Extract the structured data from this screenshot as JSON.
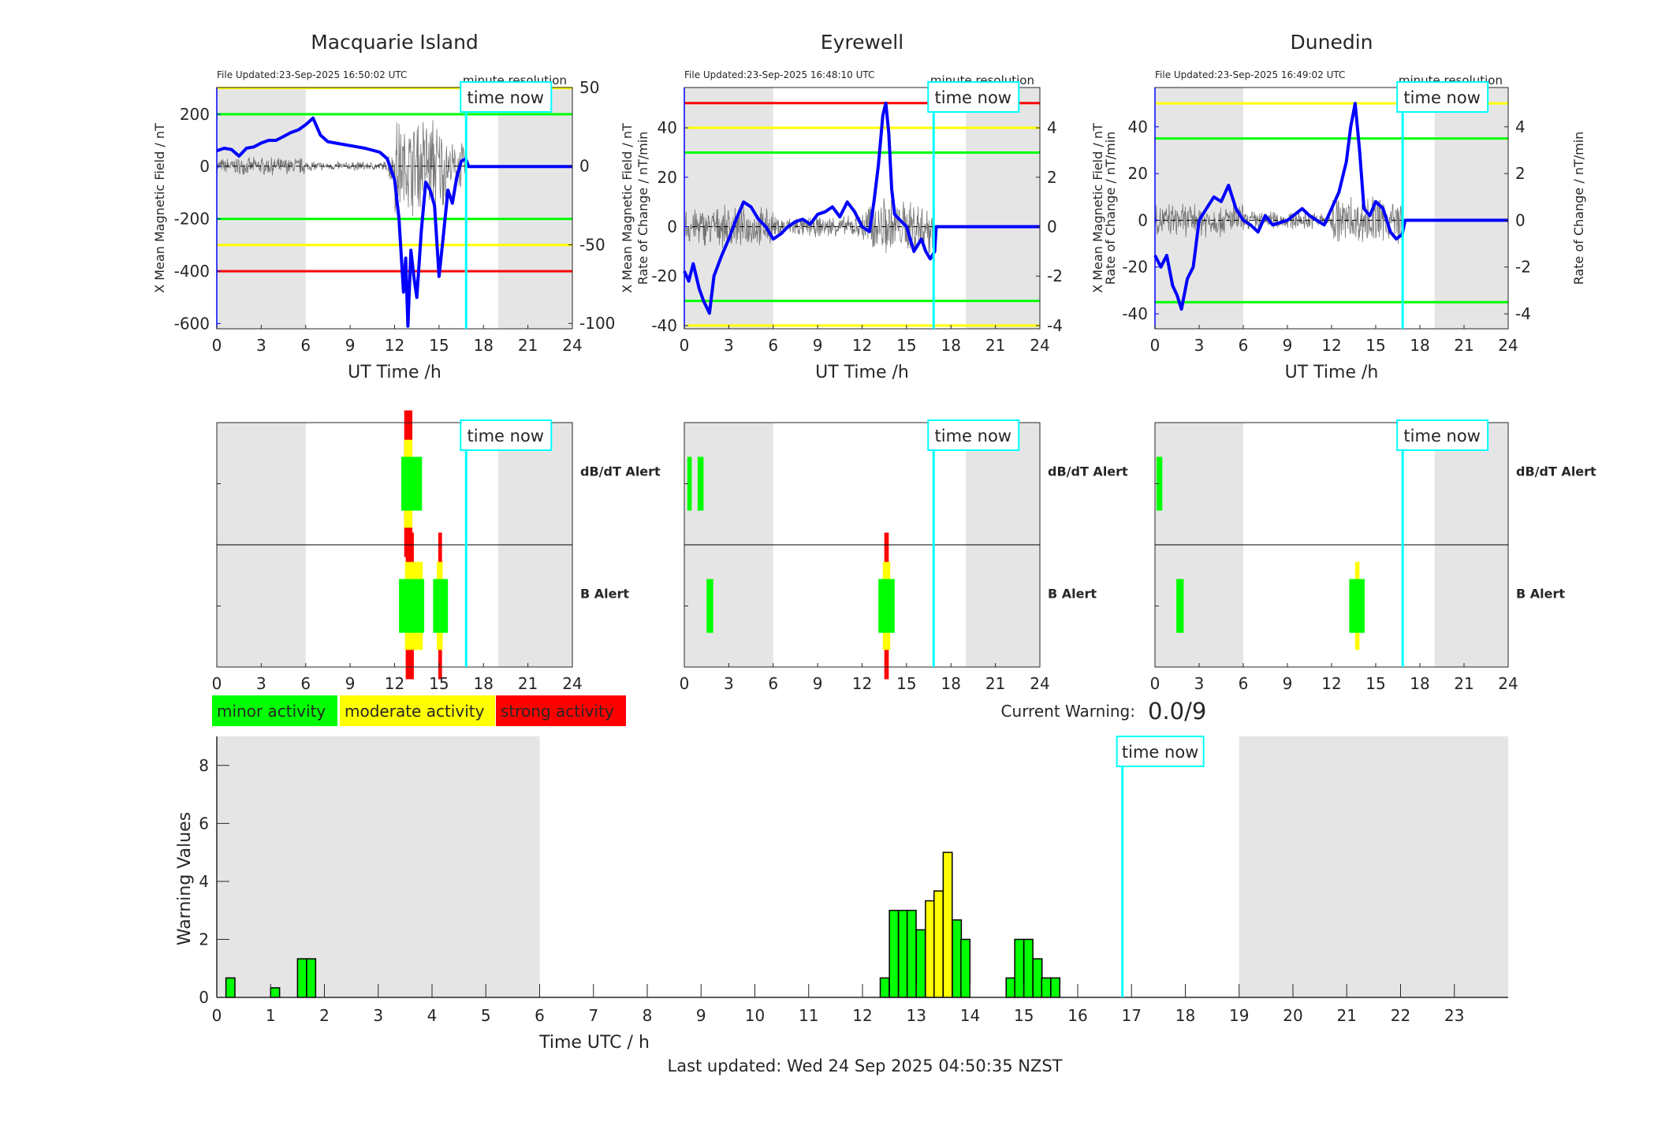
{
  "colors": {
    "green": "#00ff00",
    "yellow": "#ffff00",
    "red": "#ff0000",
    "shade": "#e5e5e5",
    "field": "#0000ff",
    "time_now": "#00ffff",
    "rate": "#555555"
  },
  "time_now_h": 16.83,
  "night_shading_h": [
    [
      0,
      6
    ],
    [
      19,
      24
    ]
  ],
  "labels": {
    "time_now": "time now",
    "minute_resolution": "minute resolution",
    "ut_time": "UT Time /h",
    "left_axis": "X Mean Magnetic Field / nT",
    "right_axis": "Rate of Change / nT/min",
    "dbdt_alert": "dB/dT Alert",
    "b_alert": "B Alert"
  },
  "legend": [
    {
      "label": "minor activity",
      "color": "#00ff00"
    },
    {
      "label": "moderate activity",
      "color": "#ffff00"
    },
    {
      "label": "strong activity",
      "color": "#ff0000"
    }
  ],
  "current_warning": {
    "label": "Current Warning:",
    "value": "0.0/9"
  },
  "chart_data": [
    {
      "type": "line",
      "title": "Macquarie Island",
      "file_updated": "File Updated:23-Sep-2025 16:50:02 UTC",
      "xlabel": "UT Time /h",
      "ylabel": "X Mean Magnetic Field / nT",
      "y2label": "Rate of Change / nT/min",
      "xlim": [
        0,
        24
      ],
      "xticks": [
        0,
        3,
        6,
        9,
        12,
        15,
        18,
        21,
        24
      ],
      "ylim": [
        -620,
        302
      ],
      "yticks": [
        -600,
        -400,
        -200,
        0,
        200
      ],
      "y2lim": [
        -103.4,
        50
      ],
      "y2ticks": [
        -100,
        -50,
        0,
        50
      ],
      "thresholds": [
        {
          "value": 300,
          "color": "#ffff00"
        },
        {
          "value": 200,
          "color": "#00ff00"
        },
        {
          "value": -200,
          "color": "#00ff00"
        },
        {
          "value": -300,
          "color": "#ffff00"
        },
        {
          "value": -400,
          "color": "#ff0000"
        }
      ],
      "field_series": {
        "x": [
          0,
          0.5,
          1,
          1.5,
          2,
          2.5,
          3,
          3.5,
          4,
          4.5,
          5,
          5.5,
          6,
          6.5,
          7,
          7.5,
          8,
          9,
          10,
          11,
          11.5,
          12,
          12.3,
          12.6,
          12.75,
          12.9,
          13.1,
          13.3,
          13.5,
          13.8,
          14.1,
          14.4,
          14.7,
          15,
          15.3,
          15.6,
          15.9,
          16.2,
          16.5,
          16.8,
          17,
          24
        ],
        "y": [
          60,
          70,
          65,
          40,
          70,
          75,
          90,
          100,
          100,
          115,
          130,
          140,
          160,
          185,
          120,
          95,
          90,
          80,
          70,
          55,
          30,
          -50,
          -200,
          -480,
          -350,
          -610,
          -320,
          -420,
          -500,
          -250,
          -60,
          -90,
          -150,
          -420,
          -260,
          -90,
          -140,
          -40,
          20,
          30,
          0,
          0
        ]
      },
      "rate_noise_amplitude": 6,
      "alerts": {
        "dbdt": [
          {
            "t0": 12.45,
            "t1": 13.85,
            "severity": "minor"
          },
          {
            "t0": 12.65,
            "t1": 13.2,
            "severity": "moderate"
          },
          {
            "t0": 12.65,
            "t1": 13.2,
            "severity": "strong"
          }
        ],
        "b": [
          {
            "t0": 12.3,
            "t1": 14.0,
            "severity": "minor"
          },
          {
            "t0": 12.7,
            "t1": 13.9,
            "severity": "moderate"
          },
          {
            "t0": 12.75,
            "t1": 13.3,
            "severity": "strong"
          },
          {
            "t0": 14.6,
            "t1": 15.6,
            "severity": "minor"
          },
          {
            "t0": 14.85,
            "t1": 15.25,
            "severity": "moderate"
          },
          {
            "t0": 14.95,
            "t1": 15.2,
            "severity": "strong"
          }
        ]
      }
    },
    {
      "type": "line",
      "title": "Eyrewell",
      "file_updated": "File Updated:23-Sep-2025 16:48:10 UTC",
      "xlabel": "UT Time /h",
      "ylabel": "X Mean Magnetic Field / nT",
      "y2label": "Rate of Change / nT/min",
      "xlim": [
        0,
        24
      ],
      "xticks": [
        0,
        3,
        6,
        9,
        12,
        15,
        18,
        21,
        24
      ],
      "ylim": [
        -41.3,
        56.3
      ],
      "yticks": [
        -40,
        -20,
        0,
        20,
        40
      ],
      "y2lim": [
        -4.13,
        5.63
      ],
      "y2ticks": [
        -4,
        -2,
        0,
        2,
        4
      ],
      "thresholds": [
        {
          "value": 50,
          "color": "#ff0000"
        },
        {
          "value": 40,
          "color": "#ffff00"
        },
        {
          "value": 30,
          "color": "#00ff00"
        },
        {
          "value": -30,
          "color": "#00ff00"
        },
        {
          "value": -40,
          "color": "#ffff00"
        }
      ],
      "field_series": {
        "x": [
          0,
          0.3,
          0.6,
          1,
          1.3,
          1.7,
          2,
          2.5,
          3,
          3.5,
          4,
          4.5,
          5,
          5.5,
          6,
          6.5,
          7,
          7.5,
          8,
          8.5,
          9,
          9.5,
          10,
          10.5,
          11,
          11.5,
          12,
          12.5,
          12.8,
          13.1,
          13.4,
          13.6,
          13.8,
          14,
          14.2,
          14.5,
          15,
          15.5,
          16,
          16.3,
          16.6,
          16.9,
          17,
          24
        ],
        "y": [
          -18,
          -22,
          -15,
          -25,
          -30,
          -35,
          -20,
          -12,
          -5,
          3,
          10,
          8,
          3,
          0,
          -5,
          -3,
          0,
          2,
          3,
          1,
          5,
          6,
          8,
          4,
          10,
          6,
          0,
          -2,
          10,
          25,
          45,
          50,
          38,
          15,
          5,
          3,
          0,
          -10,
          -5,
          -10,
          -13,
          -10,
          0,
          0
        ]
      },
      "rate_noise_amplitude": 0.9,
      "alerts": {
        "dbdt": [
          {
            "t0": 0.2,
            "t1": 0.5,
            "severity": "minor"
          },
          {
            "t0": 0.9,
            "t1": 1.3,
            "severity": "minor"
          }
        ],
        "b": [
          {
            "t0": 1.5,
            "t1": 1.95,
            "severity": "minor"
          },
          {
            "t0": 13.1,
            "t1": 14.2,
            "severity": "minor"
          },
          {
            "t0": 13.4,
            "t1": 13.9,
            "severity": "moderate"
          },
          {
            "t0": 13.5,
            "t1": 13.8,
            "severity": "strong"
          }
        ]
      }
    },
    {
      "type": "line",
      "title": "Dunedin",
      "file_updated": "File Updated:23-Sep-2025 16:49:02 UTC",
      "xlabel": "UT Time /h",
      "ylabel": "X Mean Magnetic Field / nT",
      "y2label": "Rate of Change / nT/min",
      "xlim": [
        0,
        24
      ],
      "xticks": [
        0,
        3,
        6,
        9,
        12,
        15,
        18,
        21,
        24
      ],
      "ylim": [
        -46.4,
        56.8
      ],
      "yticks": [
        -40,
        -20,
        0,
        20,
        40
      ],
      "y2lim": [
        -4.64,
        5.68
      ],
      "y2ticks": [
        -4,
        -2,
        0,
        2,
        4
      ],
      "thresholds": [
        {
          "value": 50,
          "color": "#ffff00"
        },
        {
          "value": 35,
          "color": "#00ff00"
        },
        {
          "value": -35,
          "color": "#00ff00"
        }
      ],
      "field_series": {
        "x": [
          0,
          0.4,
          0.8,
          1.2,
          1.5,
          1.8,
          2.2,
          2.6,
          3,
          3.5,
          4,
          4.5,
          5,
          5.5,
          6,
          6.5,
          7,
          7.5,
          8,
          9,
          10,
          10.5,
          11,
          11.5,
          12,
          12.5,
          13,
          13.3,
          13.6,
          13.9,
          14.2,
          14.6,
          15,
          15.5,
          16,
          16.4,
          16.8,
          17,
          24
        ],
        "y": [
          -15,
          -20,
          -15,
          -28,
          -32,
          -38,
          -25,
          -20,
          0,
          5,
          10,
          8,
          15,
          5,
          0,
          -2,
          -5,
          2,
          -2,
          0,
          5,
          2,
          0,
          -2,
          5,
          12,
          25,
          40,
          50,
          30,
          5,
          2,
          8,
          5,
          -5,
          -8,
          -6,
          0,
          0
        ]
      },
      "rate_noise_amplitude": 0.8,
      "alerts": {
        "dbdt": [
          {
            "t0": 0.1,
            "t1": 0.5,
            "severity": "minor"
          }
        ],
        "b": [
          {
            "t0": 1.45,
            "t1": 1.95,
            "severity": "minor"
          },
          {
            "t0": 13.2,
            "t1": 14.25,
            "severity": "minor"
          },
          {
            "t0": 13.6,
            "t1": 13.9,
            "severity": "moderate"
          }
        ]
      }
    },
    {
      "type": "bar",
      "title": "",
      "xlabel": "Time UTC / h",
      "ylabel": "Warning Values",
      "xlim": [
        0,
        24
      ],
      "xticks": [
        0,
        1,
        2,
        3,
        4,
        5,
        6,
        7,
        8,
        9,
        10,
        11,
        12,
        13,
        14,
        15,
        16,
        17,
        18,
        19,
        20,
        21,
        22,
        23
      ],
      "ylim": [
        0,
        9
      ],
      "yticks": [
        0,
        2,
        4,
        6,
        8
      ],
      "bin_width_h": 0.1667,
      "bars": [
        {
          "t": 0.17,
          "value": 0.67,
          "severity": "minor"
        },
        {
          "t": 1.0,
          "value": 0.33,
          "severity": "minor"
        },
        {
          "t": 1.5,
          "value": 1.33,
          "severity": "minor"
        },
        {
          "t": 1.67,
          "value": 1.33,
          "severity": "minor"
        },
        {
          "t": 12.33,
          "value": 0.67,
          "severity": "minor"
        },
        {
          "t": 12.5,
          "value": 3,
          "severity": "minor"
        },
        {
          "t": 12.67,
          "value": 3,
          "severity": "minor"
        },
        {
          "t": 12.83,
          "value": 3,
          "severity": "minor"
        },
        {
          "t": 13.0,
          "value": 2.33,
          "severity": "minor"
        },
        {
          "t": 13.17,
          "value": 3.33,
          "severity": "moderate"
        },
        {
          "t": 13.33,
          "value": 3.67,
          "severity": "moderate"
        },
        {
          "t": 13.5,
          "value": 5,
          "severity": "moderate"
        },
        {
          "t": 13.67,
          "value": 2.67,
          "severity": "minor"
        },
        {
          "t": 13.83,
          "value": 2,
          "severity": "minor"
        },
        {
          "t": 14.67,
          "value": 0.67,
          "severity": "minor"
        },
        {
          "t": 14.83,
          "value": 2,
          "severity": "minor"
        },
        {
          "t": 15.0,
          "value": 2,
          "severity": "minor"
        },
        {
          "t": 15.17,
          "value": 1.33,
          "severity": "minor"
        },
        {
          "t": 15.33,
          "value": 0.67,
          "severity": "minor"
        },
        {
          "t": 15.5,
          "value": 0.67,
          "severity": "minor"
        }
      ],
      "footer": "Last updated: Wed 24 Sep 2025 04:50:35 NZST"
    }
  ]
}
